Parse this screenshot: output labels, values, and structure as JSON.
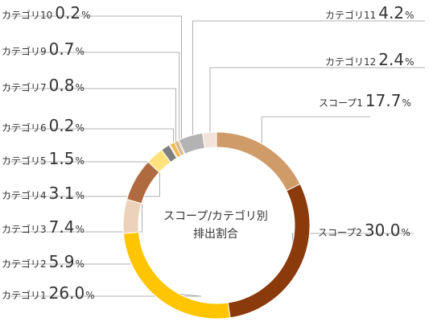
{
  "chart_data": {
    "type": "pie",
    "title": "",
    "center_label": [
      "スコープ/カテゴリ別",
      "排出割合"
    ],
    "unit": "%",
    "slices": [
      {
        "name": "スコープ1",
        "value": 17.7,
        "color": "#cf9b69"
      },
      {
        "name": "スコープ2",
        "value": 30.0,
        "color": "#8b3a0c"
      },
      {
        "name": "カテゴリ1",
        "value": 26.0,
        "color": "#ffc500"
      },
      {
        "name": "カテゴリ2",
        "value": 5.9,
        "color": "#ecd2ba"
      },
      {
        "name": "カテゴリ3",
        "value": 7.4,
        "color": "#b06a3f"
      },
      {
        "name": "カテゴリ4",
        "value": 3.1,
        "color": "#ffe27b"
      },
      {
        "name": "カテゴリ5",
        "value": 1.5,
        "color": "#7f7f7f"
      },
      {
        "name": "カテゴリ6",
        "value": 0.2,
        "color": "#c8a478"
      },
      {
        "name": "カテゴリ7",
        "value": 0.8,
        "color": "#f2b950"
      },
      {
        "name": "カテゴリ9",
        "value": 0.7,
        "color": "#d9b88d"
      },
      {
        "name": "カテゴリ10",
        "value": 0.2,
        "color": "#8b6a3c"
      },
      {
        "name": "カテゴリ11",
        "value": 4.2,
        "color": "#b3b3b3"
      },
      {
        "name": "カテゴリ12",
        "value": 2.4,
        "color": "#f2e2d9"
      }
    ]
  }
}
